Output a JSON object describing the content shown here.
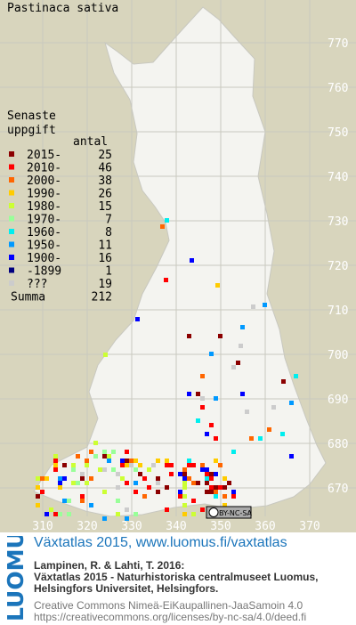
{
  "title": "Pastinaca sativa",
  "legend": {
    "heading": [
      "Senaste",
      "uppgift"
    ],
    "count_heading": "antal",
    "rows": [
      {
        "label": "2015-",
        "count": 25,
        "color": "#8b0000"
      },
      {
        "label": "2010-",
        "count": 46,
        "color": "#ff0000"
      },
      {
        "label": "2000-",
        "count": 38,
        "color": "#ff6600"
      },
      {
        "label": "1990-",
        "count": 26,
        "color": "#ffcc00"
      },
      {
        "label": "1980-",
        "count": 15,
        "color": "#ccff33"
      },
      {
        "label": "1970-",
        "count": 7,
        "color": "#99ff99"
      },
      {
        "label": "1960-",
        "count": 8,
        "color": "#00eeee"
      },
      {
        "label": "1950-",
        "count": 11,
        "color": "#0099ff"
      },
      {
        "label": "1900-",
        "count": 16,
        "color": "#0000ff"
      },
      {
        "label": "-1899",
        "count": 1,
        "color": "#000080"
      },
      {
        "label": "???",
        "count": 19,
        "color": "#cccccc"
      }
    ],
    "total_label": "Summa",
    "total": 212
  },
  "grid": {
    "y_labels": [
      "770",
      "760",
      "750",
      "740",
      "730",
      "720",
      "710",
      "700",
      "690",
      "680",
      "670"
    ],
    "x_labels": [
      "310",
      "320",
      "330",
      "340",
      "350",
      "360",
      "370"
    ]
  },
  "license_badge": "BY-NC-SA",
  "footer": {
    "brand": "LUOMUS",
    "headline": "Växtatlas 2015, www.luomus.fi/vaxtatlas",
    "citation": [
      "Lampinen, R. & Lahti, T. 2016:",
      "Växtatlas 2015 - Naturhistoriska centralmuseet Luomus,",
      "Helsingfors Universitet, Helsingfors."
    ],
    "license": [
      "Creative Commons Nimeä-EiKaupallinen-JaaSamoin 4.0",
      "https://creativecommons.org/licenses/by-nc-sa/4.0/deed.fi"
    ]
  }
}
